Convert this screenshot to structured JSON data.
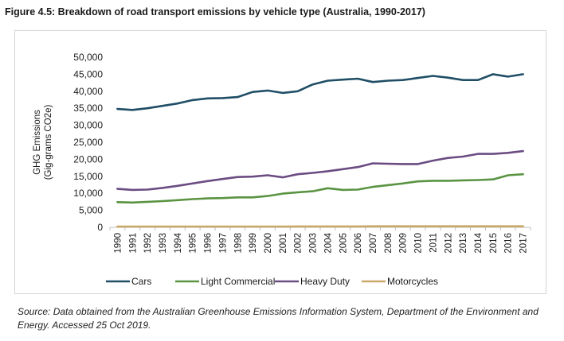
{
  "figure": {
    "title": "Figure 4.5:  Breakdown of road transport emissions by vehicle type (Australia, 1990-2017)",
    "source": "Source: Data obtained from the Australian Greenhouse Emissions Information System, Department of the Environment and Energy. Accessed 25 Oct 2019."
  },
  "chart_data": {
    "type": "line",
    "title": "",
    "xlabel": "",
    "ylabel": "GHG Emissions (Gig-grams CO2e)",
    "ylabel_lines": [
      "GHG Emissions",
      "(Gig-grams CO2e)"
    ],
    "ylim": [
      0,
      50000
    ],
    "yticks": [
      0,
      5000,
      10000,
      15000,
      20000,
      25000,
      30000,
      35000,
      40000,
      45000,
      50000
    ],
    "ytick_labels": [
      "0",
      "5,000",
      "10,000",
      "15,000",
      "20,000",
      "25,000",
      "30,000",
      "35,000",
      "40,000",
      "45,000",
      "50,000"
    ],
    "grid": false,
    "legend_position": "bottom",
    "categories": [
      "1990",
      "1991",
      "1992",
      "1993",
      "1994",
      "1995",
      "1996",
      "1997",
      "1998",
      "1999",
      "2000",
      "2001",
      "2002",
      "2003",
      "2004",
      "2005",
      "2006",
      "2007",
      "2008",
      "2009",
      "2010",
      "2011",
      "2012",
      "2013",
      "2014",
      "2015",
      "2016",
      "2017"
    ],
    "series": [
      {
        "name": "Cars",
        "color": "#1f4e66",
        "values": [
          34800,
          34500,
          35000,
          35700,
          36400,
          37400,
          37900,
          38000,
          38300,
          39800,
          40200,
          39500,
          40000,
          42000,
          43100,
          43400,
          43700,
          42700,
          43100,
          43300,
          43900,
          44500,
          44000,
          43300,
          43300,
          45000,
          44300,
          45000
        ]
      },
      {
        "name": "Light Commercial",
        "color": "#5a9443",
        "values": [
          7400,
          7300,
          7500,
          7700,
          8000,
          8300,
          8500,
          8600,
          8800,
          8800,
          9200,
          9900,
          10300,
          10600,
          11500,
          11000,
          11100,
          11900,
          12400,
          12900,
          13500,
          13700,
          13700,
          13800,
          13900,
          14100,
          15300,
          15600
        ]
      },
      {
        "name": "Heavy Duty",
        "color": "#6b4c82",
        "values": [
          11300,
          11000,
          11100,
          11600,
          12200,
          12900,
          13600,
          14200,
          14800,
          14900,
          15300,
          14700,
          15600,
          16000,
          16500,
          17100,
          17700,
          18800,
          18700,
          18600,
          18600,
          19600,
          20400,
          20800,
          21600,
          21600,
          21900,
          22400
        ]
      },
      {
        "name": "Motorcycles",
        "color": "#c9a86a",
        "values": [
          200,
          200,
          200,
          200,
          200,
          200,
          200,
          200,
          200,
          200,
          200,
          200,
          250,
          250,
          250,
          250,
          250,
          300,
          300,
          300,
          300,
          300,
          300,
          300,
          300,
          300,
          300,
          300
        ]
      }
    ]
  }
}
